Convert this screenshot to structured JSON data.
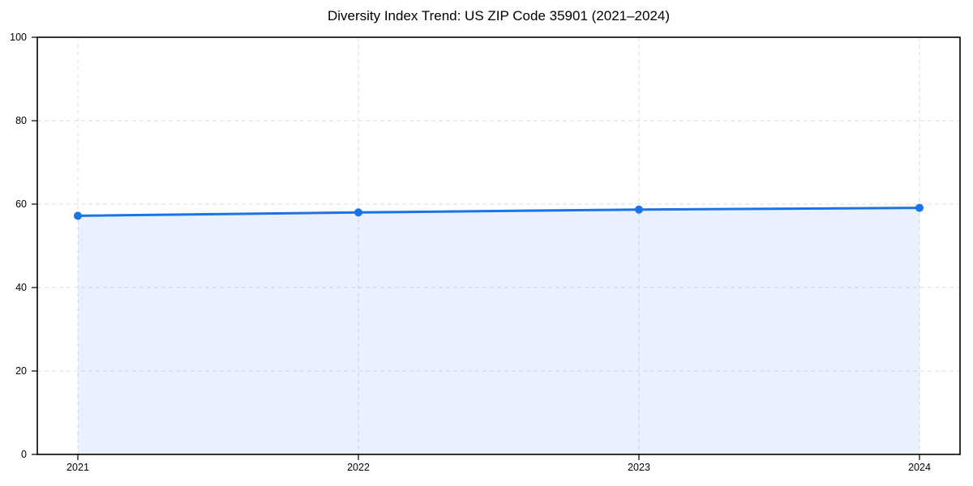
{
  "chart_data": {
    "type": "line",
    "title": "Diversity Index Trend: US ZIP Code 35901 (2021–2024)",
    "x": [
      2021,
      2022,
      2023,
      2024
    ],
    "series": [
      {
        "name": "Diversity Index",
        "values": [
          57.2,
          58.0,
          58.7,
          59.1
        ]
      }
    ],
    "xlabel": "",
    "ylabel": "",
    "xticks": [
      2021,
      2022,
      2023,
      2024
    ],
    "yticks": [
      0,
      20,
      40,
      60,
      80,
      100
    ],
    "ylim": [
      0,
      100
    ],
    "grid": true,
    "grid_style": "dashed",
    "legend": "none",
    "area_fill": true,
    "marker": "circle",
    "colors": {
      "line": "#1a73e8",
      "area": "#1a73e8",
      "area_opacity": 0.1,
      "grid": "#dddddd",
      "spine": "#000000",
      "text": "#000000",
      "background": "#ffffff"
    }
  }
}
